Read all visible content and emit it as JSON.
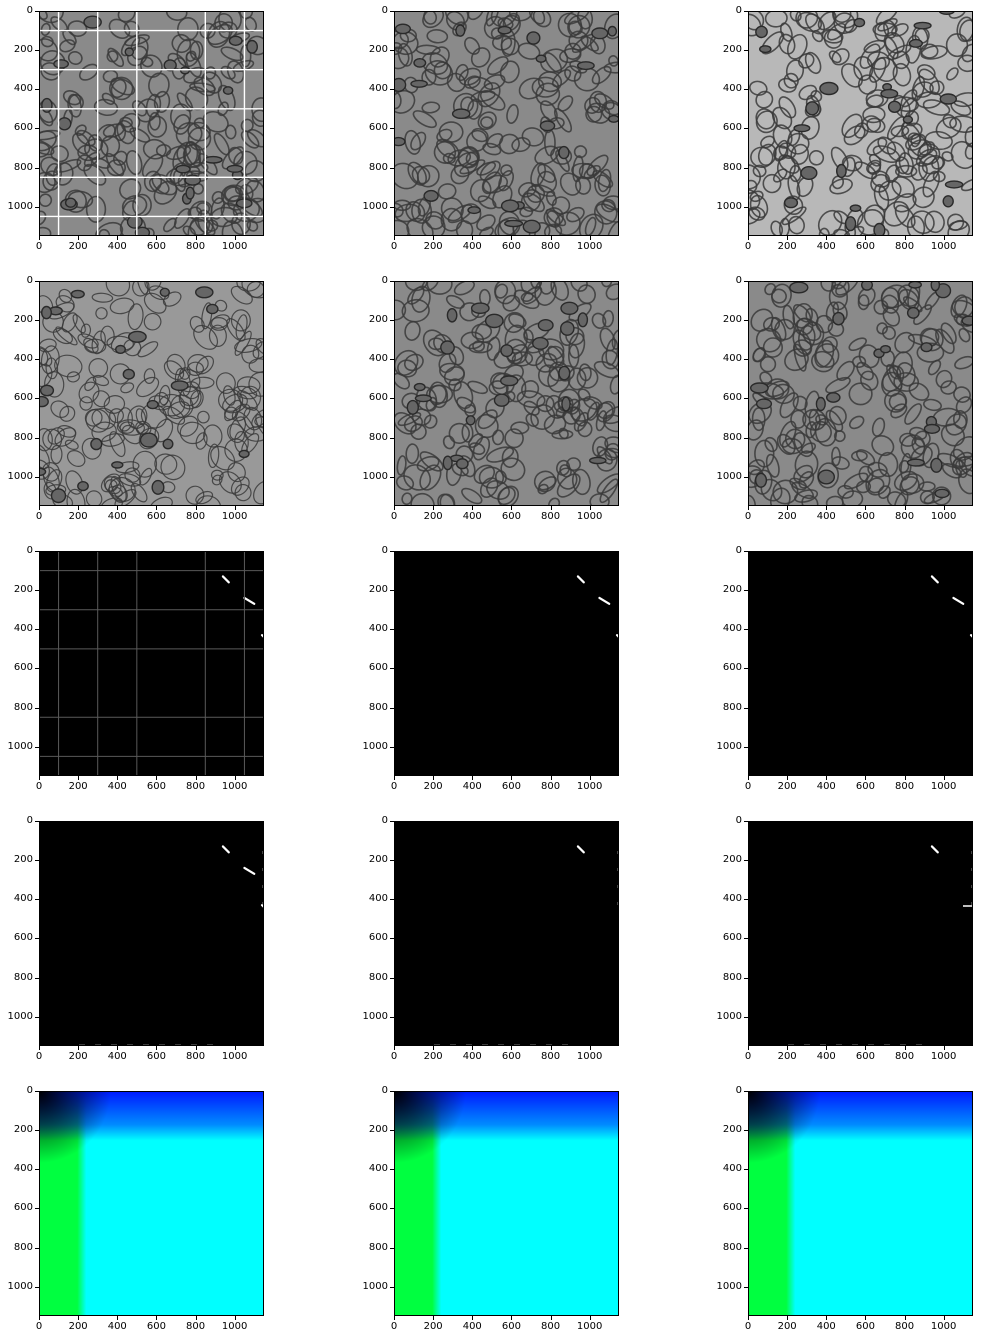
{
  "figure": {
    "rows": 5,
    "cols": 3,
    "panel_types": [
      [
        "em-gridlines",
        "em",
        "em-bright"
      ],
      [
        "em-soft",
        "em",
        "em"
      ],
      [
        "mask-gridlines",
        "mask",
        "mask"
      ],
      [
        "mask-edge",
        "mask-edge",
        "mask-edge"
      ],
      [
        "gradient",
        "gradient",
        "gradient"
      ]
    ],
    "x_ticks": [
      "0",
      "200",
      "400",
      "600",
      "800",
      "1000"
    ],
    "y_ticks": [
      "0",
      "200",
      "400",
      "600",
      "800",
      "1000"
    ],
    "axis_range": [
      0,
      1150
    ],
    "gridlines_at": [
      100,
      300,
      500,
      850,
      1050
    ],
    "colors": {
      "em_dark": "#3a3a3a",
      "em_mid": "#8a8a8a",
      "em_bright": "#b8b8b8",
      "mask_bg": "#000000",
      "mask_fg": "#ffffff",
      "grad_corner": "#000000",
      "grad_blue": "#0018ff",
      "grad_green": "#00ff40",
      "grad_cyan": "#00ffff"
    }
  },
  "chart_data": {
    "type": "image-grid",
    "tick_values": [
      0,
      200,
      400,
      600,
      800,
      1000
    ],
    "xlim": [
      0,
      1150
    ],
    "ylim": [
      1150,
      0
    ]
  }
}
